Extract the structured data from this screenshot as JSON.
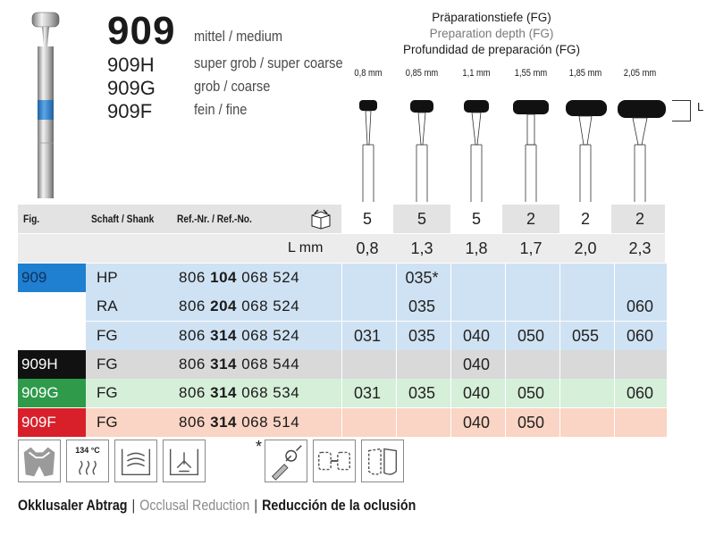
{
  "header": {
    "model": "909",
    "variants": [
      {
        "code": "",
        "grit": "mittel / medium"
      },
      {
        "code": "909H",
        "grit": "super grob / super coarse"
      },
      {
        "code": "909G",
        "grit": "grob / coarse"
      },
      {
        "code": "909F",
        "grit": "fein / fine"
      }
    ]
  },
  "prep": {
    "title_de": "Präparationstiefe (FG)",
    "title_en": "Preparation depth (FG)",
    "title_es": "Profundidad de preparación (FG)",
    "depths": [
      "0,8 mm",
      "0,85 mm",
      "1,1 mm",
      "1,55 mm",
      "1,85 mm",
      "2,05 mm"
    ],
    "l_label": "L"
  },
  "table": {
    "headers": {
      "fig": "Fig.",
      "shank": "Schaft / Shank",
      "ref": "Ref.-Nr. / Ref.-No."
    },
    "pack_icon": "package-box-icon",
    "pack": [
      "5",
      "5",
      "5",
      "2",
      "2",
      "2"
    ],
    "l_label": "L mm",
    "l_values": [
      "0,8",
      "1,3",
      "1,8",
      "1,7",
      "2,0",
      "2,3"
    ],
    "rows": [
      {
        "fig": "909",
        "shank": "HP",
        "ref_pre": "806",
        "ref_bold": "104",
        "ref_post": "068 524",
        "sizes": [
          "",
          "035*",
          "",
          "",
          "",
          ""
        ],
        "color": "#1f7fd0",
        "fill": "#cfe2f3"
      },
      {
        "fig": "",
        "shank": "RA",
        "ref_pre": "806",
        "ref_bold": "204",
        "ref_post": "068 524",
        "sizes": [
          "",
          "035",
          "",
          "",
          "",
          "060"
        ],
        "color": "#1f7fd0",
        "fill": "#cfe2f3"
      },
      {
        "fig": "",
        "shank": "FG",
        "ref_pre": "806",
        "ref_bold": "314",
        "ref_post": "068 524",
        "sizes": [
          "031",
          "035",
          "040",
          "050",
          "055",
          "060"
        ],
        "color": "#1f7fd0",
        "fill": "#cfe2f3"
      },
      {
        "fig": "909H",
        "shank": "FG",
        "ref_pre": "806",
        "ref_bold": "314",
        "ref_post": "068 544",
        "sizes": [
          "",
          "",
          "040",
          "",
          "",
          ""
        ],
        "color": "#111111",
        "fill": "#d9d9d9"
      },
      {
        "fig": "909G",
        "shank": "FG",
        "ref_pre": "806",
        "ref_bold": "314",
        "ref_post": "068 534",
        "sizes": [
          "031",
          "035",
          "040",
          "050",
          "",
          "060"
        ],
        "color": "#2e9a4a",
        "fill": "#d6efd9"
      },
      {
        "fig": "909F",
        "shank": "FG",
        "ref_pre": "806",
        "ref_bold": "314",
        "ref_post": "068 514",
        "sizes": [
          "",
          "",
          "040",
          "050",
          "",
          ""
        ],
        "color": "#d8202a",
        "fill": "#fad4c4"
      }
    ]
  },
  "footer": {
    "icons": [
      "occlusal-tooth-icon",
      "sterilization-134c-icon",
      "ultrasonic-bath-icon",
      "disinfection-icon",
      "handpiece-icon",
      "crown-bridge-icon",
      "veneer-icon"
    ],
    "sterilization_temp": "134 °C",
    "asterisk": "*",
    "de": "Okklusaler Abtrag",
    "en": "Occlusal Reduction",
    "es": "Reducción de la oclusión",
    "sep": "|"
  },
  "colors": {
    "blue": "#1f7fd0",
    "black": "#111111",
    "green": "#2e9a4a",
    "red": "#d8202a"
  }
}
